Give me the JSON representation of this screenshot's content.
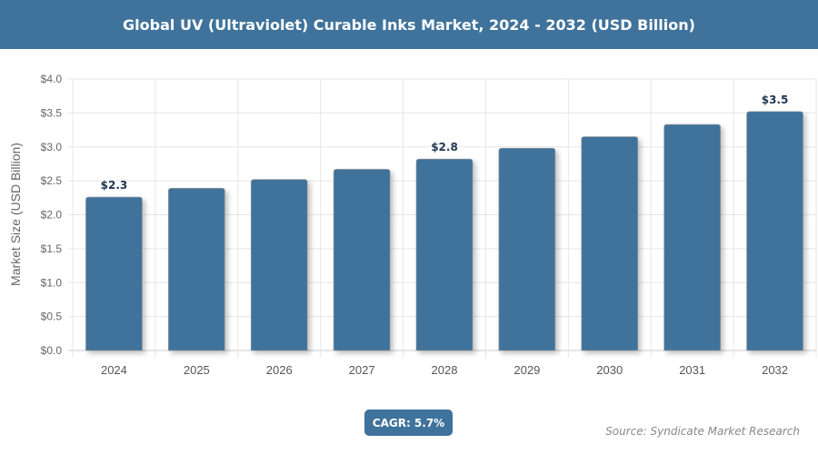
{
  "chart_data": {
    "type": "bar",
    "title": "Global UV (Ultraviolet) Curable Inks Market, 2024 - 2032 (USD Billion)",
    "xlabel": "",
    "ylabel": "Market Size (USD Billion)",
    "ylim": [
      0,
      4
    ],
    "yticks": [
      "$0.0",
      "$0.5",
      "$1.0",
      "$1.5",
      "$2.0",
      "$2.5",
      "$3.0",
      "$3.5",
      "$4.0"
    ],
    "grid": true,
    "categories": [
      "2024",
      "2025",
      "2026",
      "2027",
      "2028",
      "2029",
      "2030",
      "2031",
      "2032"
    ],
    "values": [
      2.26,
      2.39,
      2.52,
      2.67,
      2.82,
      2.98,
      3.15,
      3.33,
      3.52
    ],
    "data_labels": {
      "0": "$2.3",
      "4": "$2.8",
      "8": "$3.5"
    },
    "bar_color": "#3f739b"
  },
  "cagr_label": "CAGR: 5.7%",
  "source": "Source: Syndicate Market Research"
}
